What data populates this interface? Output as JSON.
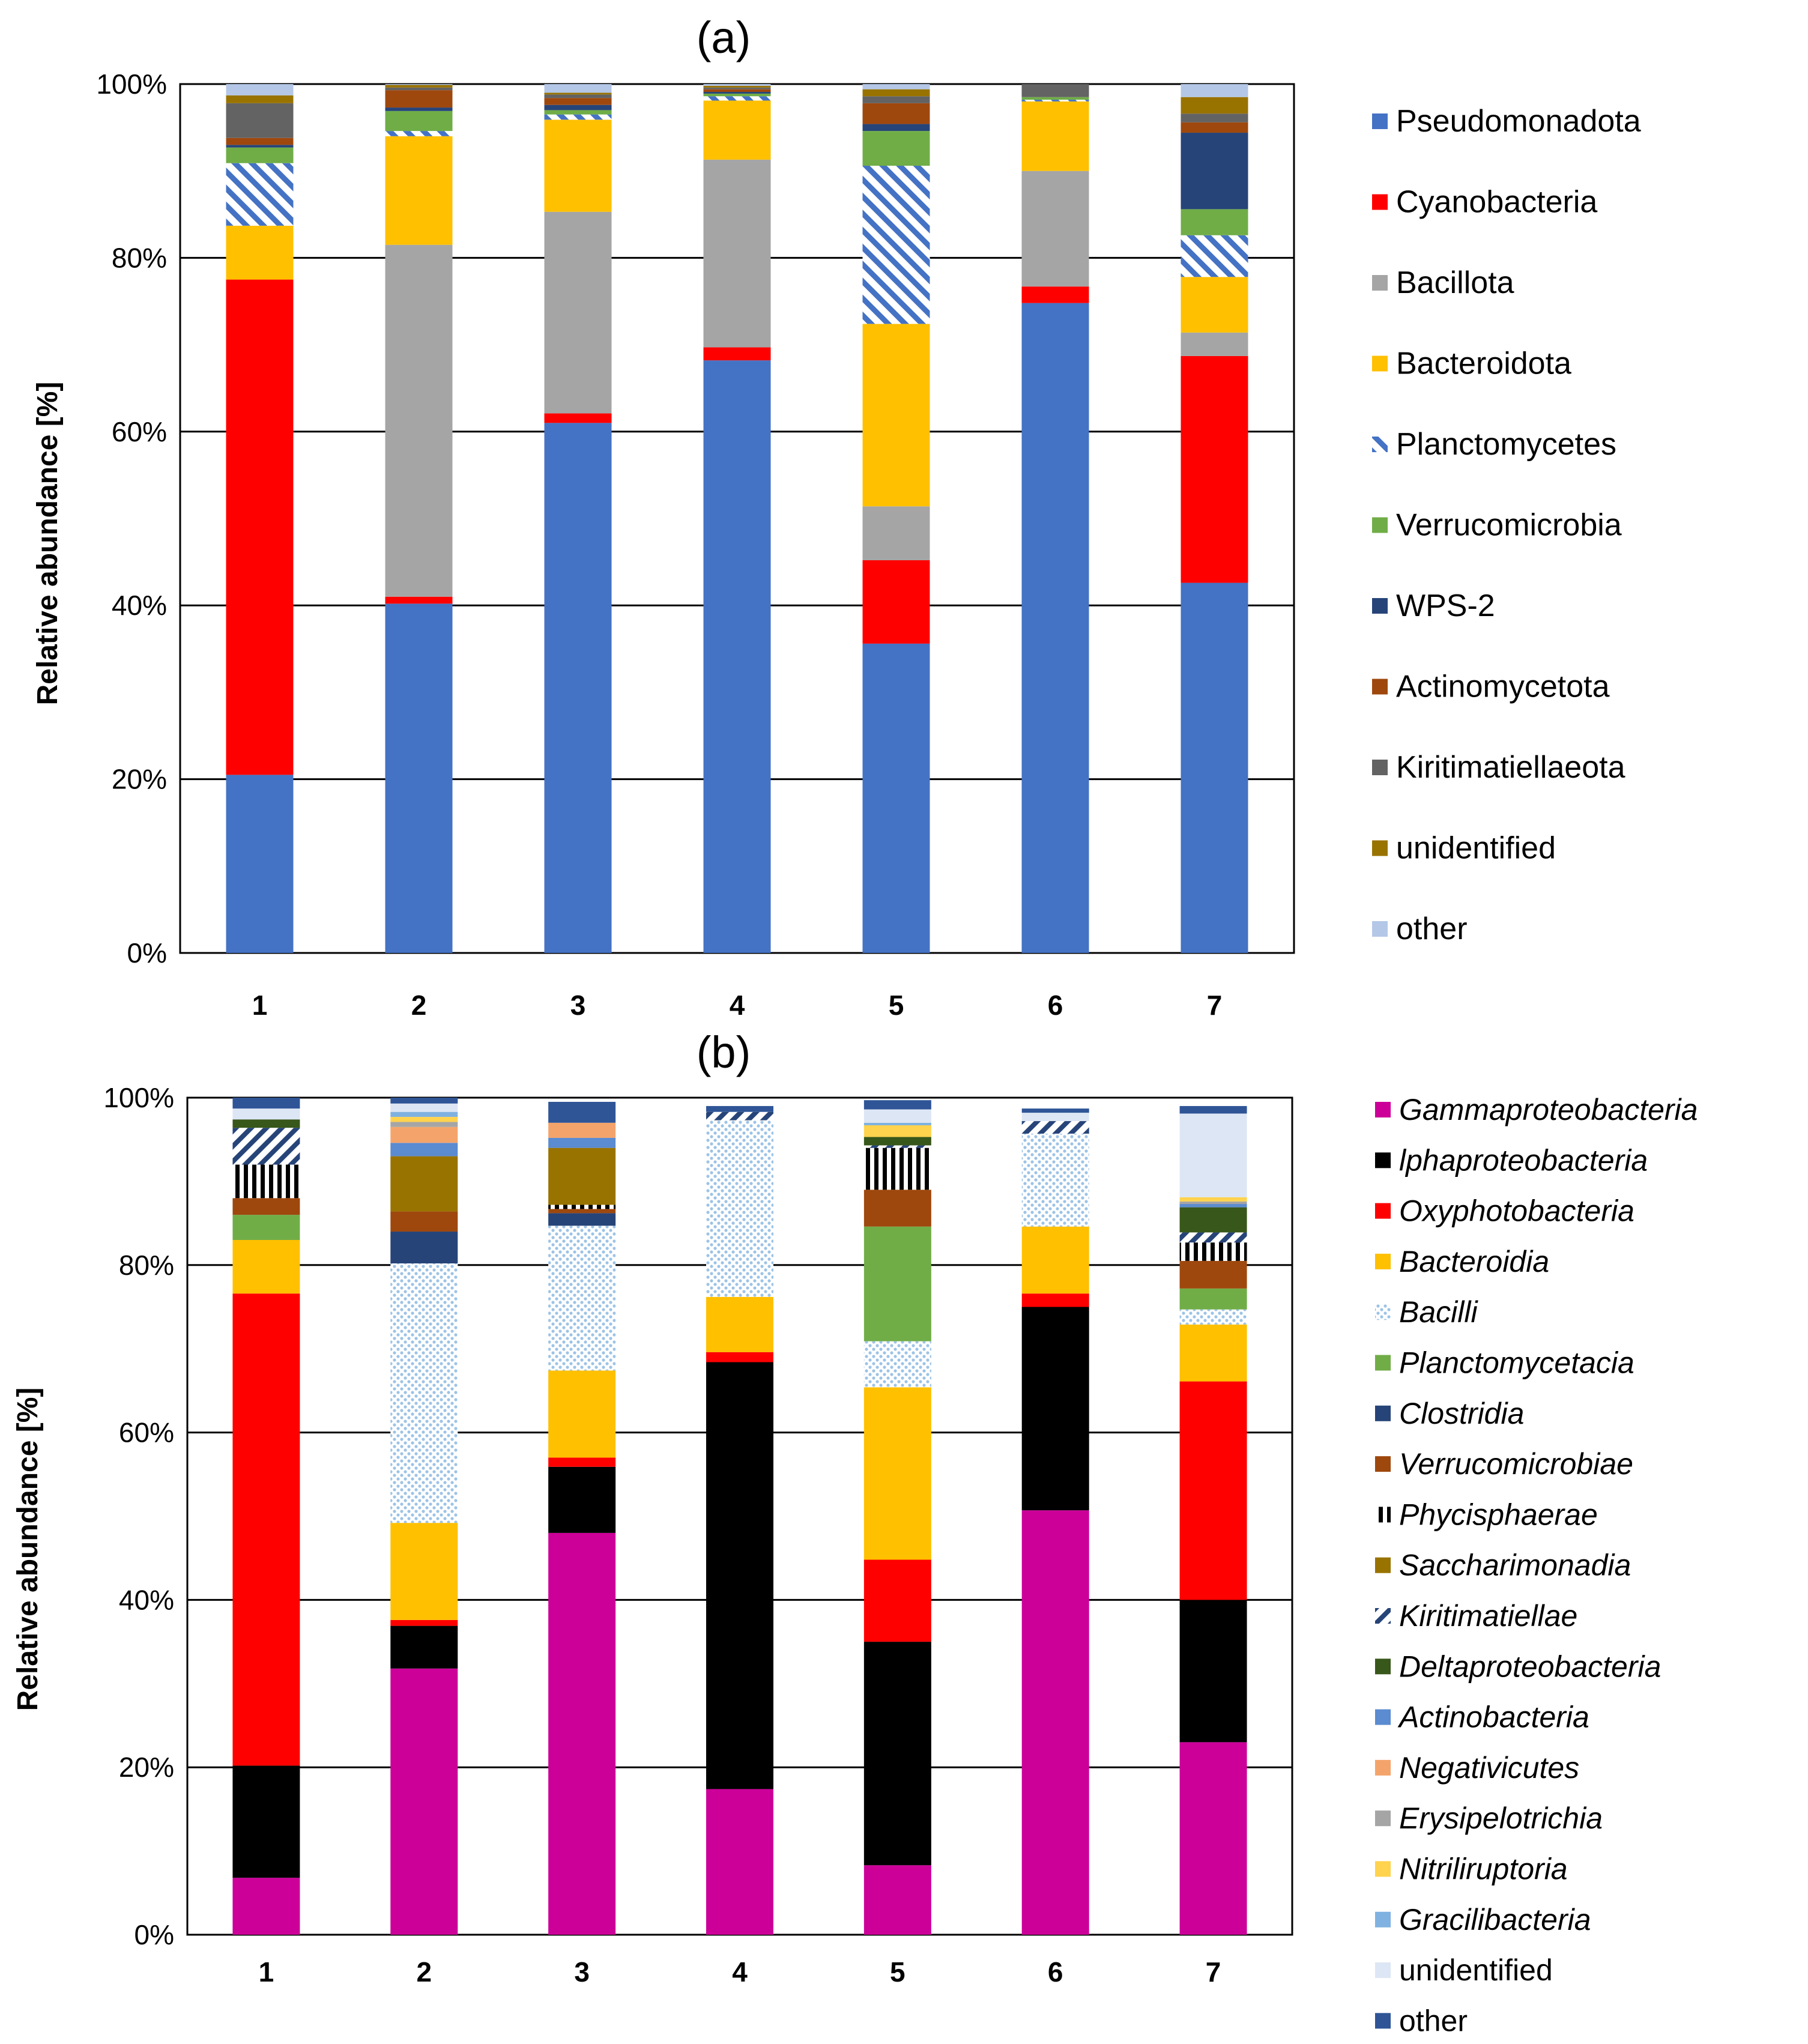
{
  "chart_data": [
    {
      "type": "bar",
      "stacked": true,
      "panel_label": "(a)",
      "ylabel": "Relative abundance  [%]",
      "xlabel": "",
      "ylim": [
        0,
        100
      ],
      "yticks": [
        "0%",
        "20%",
        "40%",
        "60%",
        "80%",
        "100%"
      ],
      "grid": true,
      "legend_position": "right",
      "categories": [
        "1",
        "2",
        "3",
        "4",
        "5",
        "6",
        "7"
      ],
      "series": [
        {
          "name": "Pseudomonadota",
          "color": "#4472C4",
          "pattern": "solid",
          "values": [
            20.5,
            40.2,
            61.0,
            68.2,
            35.6,
            74.8,
            42.6
          ]
        },
        {
          "name": "Cyanobacteria",
          "color": "#FF0000",
          "pattern": "solid",
          "values": [
            57.0,
            0.8,
            1.1,
            1.5,
            9.6,
            1.9,
            26.1
          ]
        },
        {
          "name": "Bacillota",
          "color": "#A5A5A5",
          "pattern": "solid",
          "values": [
            0.0,
            40.5,
            23.2,
            21.6,
            6.2,
            13.3,
            2.7
          ]
        },
        {
          "name": "Bacteroidota",
          "color": "#FFC000",
          "pattern": "solid",
          "values": [
            6.2,
            12.5,
            10.6,
            6.8,
            21.0,
            8.0,
            6.4
          ]
        },
        {
          "name": "Planctomycetes",
          "color": "#4472C4",
          "pattern": "hatch",
          "values": [
            7.2,
            0.6,
            0.6,
            0.5,
            18.2,
            0.2,
            4.8
          ]
        },
        {
          "name": "Verrucomicrobia",
          "color": "#70AD47",
          "pattern": "solid",
          "values": [
            1.8,
            2.3,
            0.5,
            0.3,
            4.0,
            0.3,
            3.0
          ]
        },
        {
          "name": "WPS-2",
          "color": "#264478",
          "pattern": "solid",
          "values": [
            0.3,
            0.4,
            0.6,
            0.2,
            0.8,
            0.0,
            8.8
          ]
        },
        {
          "name": "Actinomycetota",
          "color": "#9E480E",
          "pattern": "solid",
          "values": [
            0.8,
            2.0,
            0.8,
            0.3,
            2.4,
            0.0,
            1.2
          ]
        },
        {
          "name": "Kiritimatiellaeota",
          "color": "#636363",
          "pattern": "solid",
          "values": [
            4.0,
            0.3,
            0.4,
            0.2,
            0.8,
            1.5,
            1.0
          ]
        },
        {
          "name": "unidentified",
          "color": "#997300",
          "pattern": "solid",
          "values": [
            0.9,
            0.3,
            0.2,
            0.2,
            0.8,
            0.0,
            1.9
          ]
        },
        {
          "name": "other",
          "color": "#B4C7E7",
          "pattern": "solid",
          "values": [
            1.3,
            0.1,
            1.0,
            0.2,
            0.6,
            0.0,
            1.5
          ]
        }
      ]
    },
    {
      "type": "bar",
      "stacked": true,
      "panel_label": "(b)",
      "ylabel": "Relative abundance  [%]",
      "xlabel": "",
      "ylim": [
        0,
        100
      ],
      "yticks": [
        "0%",
        "20%",
        "40%",
        "60%",
        "80%",
        "100%"
      ],
      "grid": true,
      "legend_position": "right",
      "categories": [
        "1",
        "2",
        "3",
        "4",
        "5",
        "6",
        "7"
      ],
      "series": [
        {
          "name": "Gammaproteobacteria",
          "italic": true,
          "color": "#CC0099",
          "pattern": "solid",
          "values": [
            6.8,
            31.8,
            48.0,
            17.4,
            8.3,
            50.7,
            23.0
          ]
        },
        {
          "name": "lphaproteobacteria",
          "italic": true,
          "color": "#000000",
          "pattern": "solid",
          "values": [
            13.4,
            5.1,
            7.9,
            51.0,
            26.7,
            24.3,
            17.0
          ]
        },
        {
          "name": "Oxyphotobacteria",
          "italic": true,
          "color": "#FF0000",
          "pattern": "solid",
          "values": [
            56.4,
            0.7,
            1.1,
            1.2,
            9.8,
            1.6,
            26.1
          ]
        },
        {
          "name": "Bacteroidia",
          "italic": true,
          "color": "#FFC000",
          "pattern": "solid",
          "values": [
            6.4,
            11.6,
            10.4,
            6.6,
            20.6,
            8.0,
            6.8
          ]
        },
        {
          "name": "Bacilli",
          "italic": true,
          "color": "#BDD7EE",
          "pattern": "dots",
          "values": [
            0.0,
            31.0,
            17.3,
            21.1,
            5.5,
            11.1,
            1.8
          ]
        },
        {
          "name": "Planctomycetacia",
          "italic": true,
          "color": "#70AD47",
          "pattern": "solid",
          "values": [
            3.0,
            0.0,
            0.0,
            0.0,
            13.7,
            0.0,
            2.5
          ]
        },
        {
          "name": "Clostridia",
          "italic": true,
          "color": "#264478",
          "pattern": "solid",
          "values": [
            0.0,
            3.8,
            1.5,
            0.0,
            0.0,
            0.0,
            0.0
          ]
        },
        {
          "name": "Verrucomicrobiae",
          "italic": true,
          "color": "#9E480E",
          "pattern": "solid",
          "values": [
            2.0,
            2.4,
            0.5,
            0.0,
            4.4,
            0.0,
            3.3
          ]
        },
        {
          "name": "Phycisphaerae",
          "italic": true,
          "color": "#000000",
          "pattern": "vstripe",
          "values": [
            4.0,
            0.0,
            0.5,
            0.0,
            5.0,
            0.0,
            2.2
          ]
        },
        {
          "name": "Saccharimonadia",
          "italic": true,
          "color": "#997300",
          "pattern": "solid",
          "values": [
            0.0,
            6.6,
            6.8,
            0.0,
            0.0,
            0.0,
            0.0
          ]
        },
        {
          "name": "Kiritimatiellae",
          "italic": true,
          "color": "#264478",
          "pattern": "dhatch",
          "values": [
            4.4,
            0.0,
            0.0,
            1.0,
            0.3,
            1.5,
            1.2
          ]
        },
        {
          "name": "Deltaproteobacteria",
          "italic": true,
          "color": "#38571A",
          "pattern": "solid",
          "values": [
            1.0,
            0.0,
            0.0,
            0.0,
            1.0,
            0.0,
            3.0
          ]
        },
        {
          "name": "Actinobacteria",
          "italic": true,
          "color": "#5B8BD0",
          "pattern": "solid",
          "values": [
            0.0,
            1.6,
            1.2,
            0.0,
            0.0,
            0.0,
            0.4
          ]
        },
        {
          "name": "Negativicutes",
          "italic": true,
          "color": "#F4A46B",
          "pattern": "solid",
          "values": [
            0.0,
            1.9,
            1.8,
            0.0,
            0.0,
            0.0,
            0.0
          ]
        },
        {
          "name": "Erysipelotrichia",
          "italic": true,
          "color": "#A5A5A5",
          "pattern": "solid",
          "values": [
            0.0,
            0.6,
            0.0,
            0.0,
            0.0,
            0.0,
            0.3
          ]
        },
        {
          "name": "Nitriliruptoria",
          "italic": true,
          "color": "#FFD34D",
          "pattern": "solid",
          "values": [
            0.0,
            0.6,
            0.0,
            0.0,
            1.4,
            0.0,
            0.5
          ]
        },
        {
          "name": "Gracilibacteria",
          "italic": true,
          "color": "#7FB2E0",
          "pattern": "solid",
          "values": [
            0.0,
            0.6,
            0.0,
            0.0,
            0.3,
            0.0,
            0.0
          ]
        },
        {
          "name": "unidentified",
          "italic": false,
          "color": "#DDE6F4",
          "pattern": "solid",
          "values": [
            1.3,
            1.0,
            0.0,
            0.0,
            1.6,
            1.0,
            10.0
          ]
        },
        {
          "name": "other",
          "italic": false,
          "color": "#2F5597",
          "pattern": "solid",
          "values": [
            1.3,
            0.7,
            2.5,
            0.7,
            1.1,
            0.5,
            0.9
          ]
        }
      ]
    }
  ]
}
